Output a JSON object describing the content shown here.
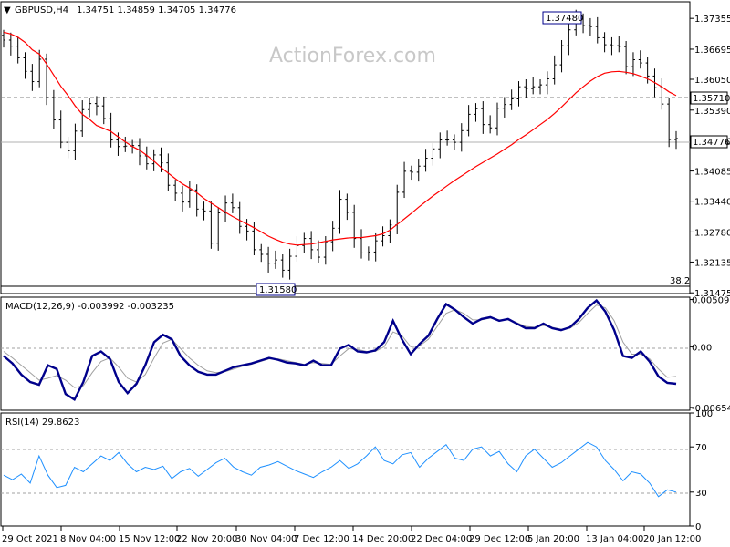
{
  "header": {
    "symbol": "GBPUSD,H4",
    "ohlc": "1.34751 1.34859 1.34705 1.34776"
  },
  "watermark": "ActionForex.com",
  "chart_data": [
    {
      "type": "candlestick",
      "title": "GBPUSD,H4",
      "ylim": [
        1.3146,
        1.3771
      ],
      "y_ticks": [
        "1.37355",
        "1.36695",
        "1.36050",
        "1.35390",
        "1.34730",
        "1.34085",
        "1.33440",
        "1.32780",
        "1.32135",
        "1.31475"
      ],
      "x_labels": [
        "29 Oct 2021",
        "8 Nov 04:00",
        "15 Nov 12:00",
        "22 Nov 20:00",
        "30 Nov 04:00",
        "7 Dec 12:00",
        "14 Dec 20:00",
        "22 Dec 04:00",
        "29 Dec 12:00",
        "5 Jan 20:00",
        "13 Jan 04:00",
        "20 Jan 12:00"
      ],
      "series": [
        {
          "name": "close",
          "values": [
            1.3689,
            1.3676,
            1.3651,
            1.3622,
            1.36,
            1.3648,
            1.3566,
            1.3518,
            1.347,
            1.3452,
            1.3494,
            1.354,
            1.3553,
            1.3548,
            1.3521,
            1.3475,
            1.3461,
            1.3462,
            1.3463,
            1.3441,
            1.3424,
            1.3443,
            1.3426,
            1.3378,
            1.3361,
            1.3342,
            1.3368,
            1.3327,
            1.3323,
            1.3254,
            1.3319,
            1.334,
            1.333,
            1.329,
            1.328,
            1.324,
            1.323,
            1.3211,
            1.3218,
            1.3196,
            1.3226,
            1.3249,
            1.3264,
            1.324,
            1.3224,
            1.3257,
            1.3286,
            1.3348,
            1.332,
            1.3264,
            1.3233,
            1.3235,
            1.3259,
            1.327,
            1.3293,
            1.3363,
            1.3408,
            1.3406,
            1.3419,
            1.3436,
            1.3456,
            1.3475,
            1.3475,
            1.347,
            1.3495,
            1.353,
            1.3542,
            1.3508,
            1.3501,
            1.3543,
            1.3551,
            1.3563,
            1.3589,
            1.3585,
            1.3589,
            1.3593,
            1.3606,
            1.3636,
            1.3677,
            1.3711,
            1.3734,
            1.372,
            1.3718,
            1.3694,
            1.3679,
            1.3677,
            1.3675,
            1.3632,
            1.3647,
            1.364,
            1.3612,
            1.3587,
            1.3552,
            1.3476,
            1.3478
          ]
        },
        {
          "name": "MA",
          "values": [
            1.3706,
            1.3702,
            1.3695,
            1.3684,
            1.3668,
            1.3659,
            1.3638,
            1.3614,
            1.359,
            1.357,
            1.3548,
            1.353,
            1.3519,
            1.3506,
            1.35,
            1.3493,
            1.3482,
            1.3471,
            1.3461,
            1.3453,
            1.3442,
            1.343,
            1.3416,
            1.3404,
            1.3392,
            1.3381,
            1.3372,
            1.3362,
            1.335,
            1.334,
            1.333,
            1.332,
            1.3311,
            1.3303,
            1.3295,
            1.3287,
            1.3278,
            1.3269,
            1.3262,
            1.3256,
            1.3252,
            1.325,
            1.3251,
            1.3252,
            1.3255,
            1.3258,
            1.3261,
            1.3263,
            1.3265,
            1.3266,
            1.3266,
            1.3268,
            1.327,
            1.3274,
            1.3282,
            1.3294,
            1.3306,
            1.3318,
            1.3331,
            1.3343,
            1.3355,
            1.3366,
            1.3377,
            1.3388,
            1.3398,
            1.3408,
            1.3418,
            1.3427,
            1.3436,
            1.3445,
            1.3455,
            1.3465,
            1.3476,
            1.3486,
            1.3497,
            1.3508,
            1.3519,
            1.3532,
            1.3546,
            1.3561,
            1.3576,
            1.3589,
            1.3601,
            1.3611,
            1.3618,
            1.3621,
            1.3622,
            1.362,
            1.3617,
            1.3612,
            1.3606,
            1.3598,
            1.3589,
            1.3578,
            1.357
          ]
        }
      ],
      "annotations": [
        "1.37480",
        "1.31580",
        "1.35710",
        "1.34776",
        "38.2"
      ]
    },
    {
      "type": "line",
      "title": "MACD(12,26,9) -0.003992 -0.003235",
      "ylim": [
        -0.00685,
        0.00535
      ],
      "y_ticks": [
        "0.005099",
        "0.00",
        "-0.006543"
      ],
      "series": [
        {
          "name": "MACD",
          "values": [
            -0.001,
            -0.0018,
            -0.003,
            -0.0038,
            -0.0041,
            -0.002,
            -0.0024,
            -0.0051,
            -0.0057,
            -0.0038,
            -0.001,
            -0.0005,
            -0.0013,
            -0.0038,
            -0.005,
            -0.004,
            -0.002,
            0.0005,
            0.0013,
            0.0008,
            -0.001,
            -0.002,
            -0.0027,
            -0.003,
            -0.003,
            -0.0026,
            -0.0022,
            -0.002,
            -0.0018,
            -0.0015,
            -0.0012,
            -0.0014,
            -0.0017,
            -0.0018,
            -0.002,
            -0.0015,
            -0.002,
            -0.002,
            -0.0002,
            0.0002,
            -0.0005,
            -0.0006,
            -0.0004,
            0.0005,
            0.0028,
            0.0008,
            -0.0008,
            0.0003,
            0.0012,
            0.003,
            0.0046,
            0.004,
            0.0032,
            0.0025,
            0.003,
            0.0032,
            0.0028,
            0.003,
            0.0025,
            0.002,
            0.002,
            0.0025,
            0.002,
            0.0018,
            0.0021,
            0.003,
            0.0042,
            0.005,
            0.0038,
            0.0018,
            -0.001,
            -0.0012,
            -0.0005,
            -0.0016,
            -0.0032,
            -0.0039,
            -0.004
          ]
        },
        {
          "name": "Signal",
          "values": [
            -0.0005,
            -0.0012,
            -0.002,
            -0.0028,
            -0.0036,
            -0.0034,
            -0.0031,
            -0.0036,
            -0.0044,
            -0.0042,
            -0.0028,
            -0.0016,
            -0.0012,
            -0.0022,
            -0.0034,
            -0.0038,
            -0.003,
            -0.0012,
            0.0004,
            0.0008,
            -0.0002,
            -0.0012,
            -0.002,
            -0.0026,
            -0.0028,
            -0.0027,
            -0.0024,
            -0.0021,
            -0.0019,
            -0.0016,
            -0.0013,
            -0.0013,
            -0.0015,
            -0.0017,
            -0.0019,
            -0.0017,
            -0.0018,
            -0.0019,
            -0.001,
            -0.0002,
            -0.0003,
            -0.0005,
            -0.0005,
            0.0,
            0.0016,
            0.0012,
            0.0,
            0.0001,
            0.0008,
            0.0022,
            0.0036,
            0.004,
            0.0036,
            0.0029,
            0.0029,
            0.0031,
            0.0029,
            0.0029,
            0.0026,
            0.0022,
            0.0021,
            0.0023,
            0.0021,
            0.0019,
            0.002,
            0.0026,
            0.0036,
            0.0045,
            0.0042,
            0.0028,
            0.0005,
            -0.0008,
            -0.0008,
            -0.0013,
            -0.0024,
            -0.0033,
            -0.0032
          ]
        }
      ]
    },
    {
      "type": "line",
      "title": "RSI(14) 29.8623",
      "ylim": [
        0,
        100
      ],
      "y_ticks": [
        "100",
        "70",
        "30",
        "0"
      ],
      "series": [
        {
          "name": "RSI",
          "values": [
            45,
            41,
            46,
            38,
            62,
            45,
            34,
            36,
            52,
            48,
            55,
            62,
            58,
            65,
            55,
            48,
            52,
            50,
            53,
            42,
            48,
            51,
            44,
            50,
            56,
            60,
            52,
            48,
            45,
            52,
            54,
            57,
            53,
            49,
            46,
            43,
            48,
            52,
            58,
            51,
            55,
            62,
            70,
            58,
            55,
            63,
            65,
            52,
            60,
            66,
            72,
            60,
            58,
            68,
            70,
            62,
            66,
            55,
            48,
            62,
            68,
            60,
            52,
            56,
            62,
            68,
            74,
            70,
            58,
            50,
            40,
            48,
            46,
            38,
            26,
            32,
            30
          ]
        }
      ]
    }
  ],
  "colors": {
    "candle": "#000000",
    "ma": "#ff0000",
    "macd": "#00008b",
    "signal": "#a0a0a0",
    "rsi": "#1e90ff",
    "level": "#808080"
  }
}
